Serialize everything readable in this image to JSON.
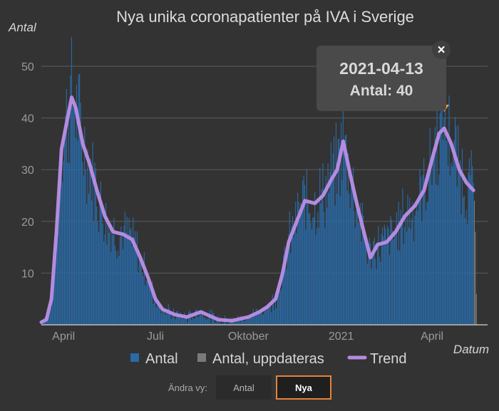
{
  "chart_data": {
    "type": "bar",
    "title": "Nya unika coronapatienter på IVA i Sverige",
    "ylabel": "Antal",
    "xlabel": "Datum",
    "ylim": [
      0,
      50
    ],
    "yticks": [
      10,
      20,
      30,
      40,
      50
    ],
    "x_range": [
      "2020-03-10",
      "2021-05-26"
    ],
    "xticks": [
      {
        "date": "2020-04-01",
        "label": "April"
      },
      {
        "date": "2020-07-01",
        "label": "Juli"
      },
      {
        "date": "2020-10-01",
        "label": "Oktober"
      },
      {
        "date": "2021-01-01",
        "label": "2021"
      },
      {
        "date": "2021-04-01",
        "label": "April"
      }
    ],
    "grid": true,
    "legend_position": "bottom",
    "colors": {
      "antal": "#2a6aa6",
      "antal_uppdateras": "#7a7a7a",
      "trend": "#b48be0",
      "marker": "#f0a040",
      "tooltip_bg": "#4a4a4a"
    },
    "trend_points": [
      [
        "2020-03-10",
        0.5
      ],
      [
        "2020-03-15",
        1
      ],
      [
        "2020-03-20",
        5
      ],
      [
        "2020-03-25",
        18
      ],
      [
        "2020-03-30",
        34
      ],
      [
        "2020-04-05",
        40
      ],
      [
        "2020-04-09",
        44
      ],
      [
        "2020-04-13",
        42
      ],
      [
        "2020-04-20",
        35
      ],
      [
        "2020-04-27",
        31
      ],
      [
        "2020-05-04",
        26
      ],
      [
        "2020-05-12",
        21
      ],
      [
        "2020-05-20",
        18
      ],
      [
        "2020-05-30",
        17.5
      ],
      [
        "2020-06-08",
        16.5
      ],
      [
        "2020-06-16",
        13
      ],
      [
        "2020-06-24",
        9
      ],
      [
        "2020-07-01",
        5
      ],
      [
        "2020-07-08",
        3
      ],
      [
        "2020-07-20",
        2
      ],
      [
        "2020-08-01",
        1.5
      ],
      [
        "2020-08-15",
        2.5
      ],
      [
        "2020-09-01",
        1
      ],
      [
        "2020-09-15",
        0.8
      ],
      [
        "2020-10-01",
        1.5
      ],
      [
        "2020-10-12",
        2.5
      ],
      [
        "2020-10-20",
        3.5
      ],
      [
        "2020-10-28",
        5
      ],
      [
        "2020-11-04",
        10
      ],
      [
        "2020-11-10",
        16
      ],
      [
        "2020-11-18",
        20
      ],
      [
        "2020-11-26",
        24
      ],
      [
        "2020-12-06",
        23.5
      ],
      [
        "2020-12-14",
        25
      ],
      [
        "2020-12-22",
        28
      ],
      [
        "2020-12-28",
        30
      ],
      [
        "2021-01-03",
        35.5
      ],
      [
        "2021-01-10",
        29
      ],
      [
        "2021-01-17",
        23
      ],
      [
        "2021-01-24",
        17.5
      ],
      [
        "2021-01-30",
        13
      ],
      [
        "2021-02-06",
        15.5
      ],
      [
        "2021-02-15",
        16
      ],
      [
        "2021-02-24",
        18
      ],
      [
        "2021-03-05",
        21
      ],
      [
        "2021-03-15",
        23
      ],
      [
        "2021-03-24",
        26
      ],
      [
        "2021-04-01",
        32
      ],
      [
        "2021-04-08",
        37
      ],
      [
        "2021-04-13",
        38
      ],
      [
        "2021-04-20",
        35
      ],
      [
        "2021-04-28",
        30
      ],
      [
        "2021-05-05",
        27.5
      ],
      [
        "2021-05-12",
        26
      ]
    ],
    "pending_from": "2021-05-13",
    "pending_values": [
      24,
      18,
      6
    ],
    "highlight": {
      "date": "2021-04-13",
      "value": 40
    }
  },
  "legend": {
    "antal": "Antal",
    "antal_uppdateras": "Antal, uppdateras",
    "trend": "Trend"
  },
  "tooltip": {
    "date": "2021-04-13",
    "value_text": "Antal: 40",
    "close_icon": "×"
  },
  "view_switch": {
    "label": "Ändra vy:",
    "options": [
      "Antal",
      "Nya"
    ],
    "selected": "Nya"
  }
}
